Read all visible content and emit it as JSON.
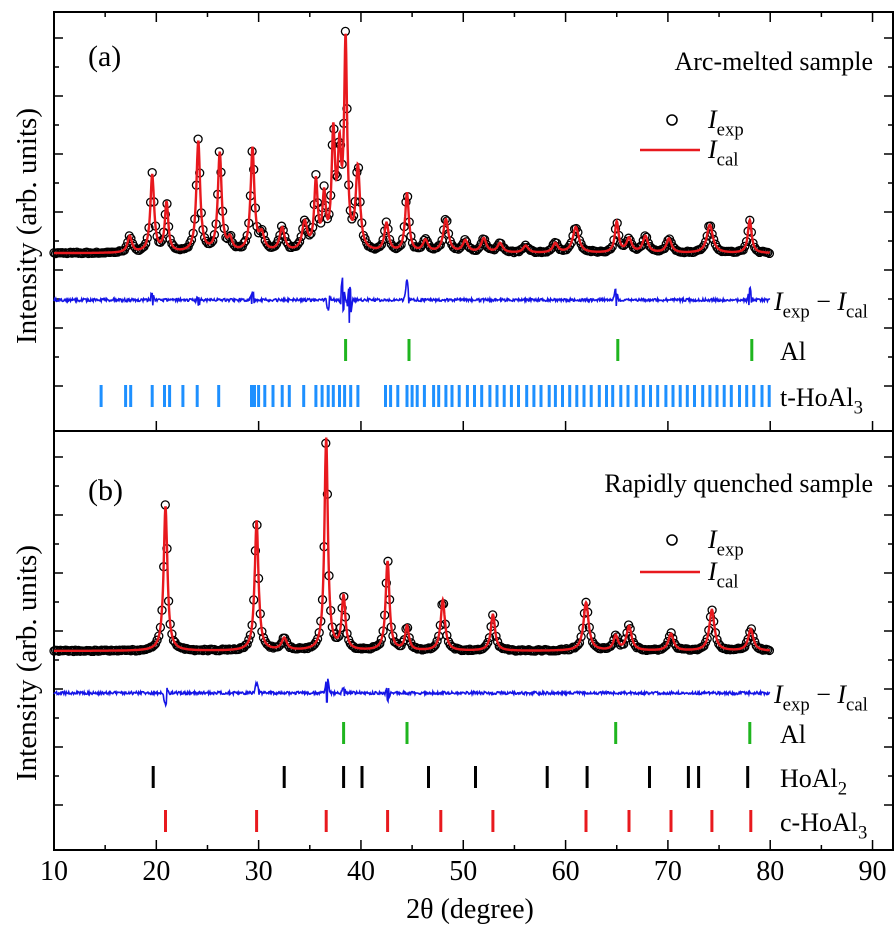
{
  "chart_data": {
    "type": "scatter",
    "xlabel": "2θ (degree)",
    "ylabel": "Intensity (arb. units)",
    "xlim": [
      10,
      92
    ],
    "x_ticks": [
      10,
      20,
      30,
      40,
      50,
      60,
      70,
      80,
      90
    ],
    "colors": {
      "exp_marker": "#000000",
      "calc_line": "#e8191e",
      "diff_line": "#1515e6",
      "al_ticks": "#1fb51f",
      "t_hoal3_ticks": "#1e90ff",
      "hoal2_ticks": "#000000",
      "c_hoal3_ticks": "#e8191e"
    },
    "panels": [
      {
        "label": "(a)",
        "title": "Arc-melted sample",
        "legend": {
          "exp": "I",
          "exp_sub": "exp",
          "cal": "I",
          "cal_sub": "cal"
        },
        "diff_label": {
          "a": "I",
          "a_sub": "exp",
          "op": " − ",
          "b": "I",
          "b_sub": "cal"
        },
        "baseline": 0.05,
        "peaks": [
          {
            "x": 17.4,
            "h": 0.07,
            "w": 0.25
          },
          {
            "x": 19.6,
            "h": 0.33,
            "w": 0.22
          },
          {
            "x": 21.0,
            "h": 0.21,
            "w": 0.2
          },
          {
            "x": 24.1,
            "h": 0.47,
            "w": 0.22
          },
          {
            "x": 26.2,
            "h": 0.42,
            "w": 0.22
          },
          {
            "x": 27.2,
            "h": 0.05,
            "w": 0.25
          },
          {
            "x": 29.4,
            "h": 0.44,
            "w": 0.22
          },
          {
            "x": 30.3,
            "h": 0.07,
            "w": 0.3
          },
          {
            "x": 32.3,
            "h": 0.1,
            "w": 0.3
          },
          {
            "x": 34.5,
            "h": 0.12,
            "w": 0.3
          },
          {
            "x": 35.6,
            "h": 0.29,
            "w": 0.2
          },
          {
            "x": 36.4,
            "h": 0.22,
            "w": 0.2
          },
          {
            "x": 37.3,
            "h": 0.48,
            "w": 0.2
          },
          {
            "x": 37.9,
            "h": 0.38,
            "w": 0.2
          },
          {
            "x": 38.5,
            "h": 0.87,
            "w": 0.18
          },
          {
            "x": 39.7,
            "h": 0.35,
            "w": 0.25
          },
          {
            "x": 42.5,
            "h": 0.12,
            "w": 0.25
          },
          {
            "x": 44.5,
            "h": 0.25,
            "w": 0.22
          },
          {
            "x": 46.3,
            "h": 0.05,
            "w": 0.3
          },
          {
            "x": 48.3,
            "h": 0.14,
            "w": 0.3
          },
          {
            "x": 50.2,
            "h": 0.05,
            "w": 0.3
          },
          {
            "x": 52.0,
            "h": 0.06,
            "w": 0.3
          },
          {
            "x": 53.6,
            "h": 0.04,
            "w": 0.3
          },
          {
            "x": 56.1,
            "h": 0.03,
            "w": 0.3
          },
          {
            "x": 59.0,
            "h": 0.04,
            "w": 0.3
          },
          {
            "x": 61.0,
            "h": 0.11,
            "w": 0.35
          },
          {
            "x": 65.0,
            "h": 0.13,
            "w": 0.22
          },
          {
            "x": 66.2,
            "h": 0.06,
            "w": 0.3
          },
          {
            "x": 67.8,
            "h": 0.07,
            "w": 0.3
          },
          {
            "x": 70.1,
            "h": 0.06,
            "w": 0.3
          },
          {
            "x": 74.1,
            "h": 0.12,
            "w": 0.35
          },
          {
            "x": 78.0,
            "h": 0.14,
            "w": 0.22
          }
        ],
        "diff_spikes": [
          {
            "x": 19.6,
            "a": 0.03
          },
          {
            "x": 24.1,
            "a": -0.025
          },
          {
            "x": 29.4,
            "a": 0.035
          },
          {
            "x": 36.8,
            "a": -0.04
          },
          {
            "x": 38.2,
            "a": 0.09
          },
          {
            "x": 38.9,
            "a": -0.1
          },
          {
            "x": 44.5,
            "a": 0.08
          },
          {
            "x": 64.9,
            "a": 0.045
          },
          {
            "x": 78.0,
            "a": 0.05
          }
        ],
        "reflections": [
          {
            "phase": "Al",
            "color_key": "al_ticks",
            "positions": [
              38.5,
              44.7,
              65.1,
              78.2
            ]
          },
          {
            "phase": "t-HoAl",
            "phase_sub": "3",
            "color_key": "t_hoal3_ticks",
            "positions": [
              14.6,
              17.0,
              17.5,
              19.6,
              20.8,
              21.3,
              22.6,
              24.0,
              26.1,
              29.3,
              29.6,
              30.0,
              30.6,
              31.4,
              32.3,
              33.0,
              34.4,
              35.6,
              36.2,
              36.8,
              37.3,
              37.9,
              38.4,
              39.0,
              39.7,
              42.4,
              42.9,
              43.6,
              44.5,
              45.0,
              45.5,
              46.2,
              47.1,
              47.6,
              48.3,
              48.9,
              49.6,
              50.4,
              51.1,
              51.8,
              52.6,
              53.3,
              54.0,
              54.7,
              55.4,
              56.2,
              56.9,
              57.6,
              58.4,
              59.0,
              59.7,
              60.4,
              61.1,
              61.8,
              62.5,
              63.3,
              64.0,
              64.6,
              65.4,
              66.1,
              66.9,
              67.6,
              68.3,
              69.0,
              69.8,
              70.5,
              71.2,
              71.9,
              72.6,
              73.4,
              74.1,
              74.8,
              75.5,
              76.2,
              77.0,
              77.7,
              78.4,
              79.2,
              79.9
            ]
          }
        ]
      },
      {
        "label": "(b)",
        "title": "Rapidly quenched sample",
        "legend": {
          "exp": "I",
          "exp_sub": "exp",
          "cal": "I",
          "cal_sub": "cal"
        },
        "diff_label": {
          "a": "I",
          "a_sub": "exp",
          "op": " − ",
          "b": "I",
          "b_sub": "cal"
        },
        "baseline": 0.05,
        "peaks": [
          {
            "x": 20.9,
            "h": 0.6,
            "w": 0.22
          },
          {
            "x": 29.8,
            "h": 0.54,
            "w": 0.22
          },
          {
            "x": 32.5,
            "h": 0.05,
            "w": 0.3
          },
          {
            "x": 36.6,
            "h": 0.88,
            "w": 0.2
          },
          {
            "x": 38.3,
            "h": 0.22,
            "w": 0.22
          },
          {
            "x": 42.6,
            "h": 0.37,
            "w": 0.22
          },
          {
            "x": 44.5,
            "h": 0.1,
            "w": 0.22
          },
          {
            "x": 48.0,
            "h": 0.21,
            "w": 0.25
          },
          {
            "x": 52.9,
            "h": 0.15,
            "w": 0.25
          },
          {
            "x": 62.0,
            "h": 0.2,
            "w": 0.3
          },
          {
            "x": 64.9,
            "h": 0.06,
            "w": 0.25
          },
          {
            "x": 66.2,
            "h": 0.1,
            "w": 0.3
          },
          {
            "x": 70.3,
            "h": 0.07,
            "w": 0.3
          },
          {
            "x": 74.3,
            "h": 0.17,
            "w": 0.3
          },
          {
            "x": 78.1,
            "h": 0.09,
            "w": 0.3
          }
        ],
        "diff_spikes": [
          {
            "x": 20.9,
            "a": -0.05
          },
          {
            "x": 29.8,
            "a": 0.04
          },
          {
            "x": 36.7,
            "a": 0.07
          },
          {
            "x": 38.3,
            "a": 0.025
          },
          {
            "x": 42.6,
            "a": -0.035
          }
        ],
        "reflections": [
          {
            "phase": "Al",
            "color_key": "al_ticks",
            "positions": [
              38.3,
              44.5,
              64.9,
              78.0
            ]
          },
          {
            "phase": "HoAl",
            "phase_sub": "2",
            "color_key": "hoal2_ticks",
            "positions": [
              19.7,
              32.5,
              38.3,
              40.1,
              46.6,
              51.2,
              58.2,
              62.1,
              68.2,
              72.0,
              73.0,
              77.8
            ]
          },
          {
            "phase": "c-HoAl",
            "phase_sub": "3",
            "color_key": "c_hoal3_ticks",
            "positions": [
              20.9,
              29.8,
              36.6,
              42.6,
              47.8,
              52.9,
              62.0,
              66.2,
              70.3,
              74.3,
              78.1
            ]
          }
        ]
      }
    ]
  }
}
